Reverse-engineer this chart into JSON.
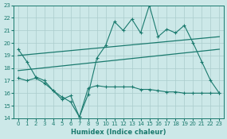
{
  "xlabel": "Humidex (Indice chaleur)",
  "bg_color": "#cce8e8",
  "line_color": "#1a7a6e",
  "grid_color": "#aacccc",
  "xlim": [
    -0.5,
    23.5
  ],
  "ylim": [
    14,
    23
  ],
  "xticks": [
    0,
    1,
    2,
    3,
    4,
    5,
    6,
    7,
    8,
    9,
    10,
    11,
    12,
    13,
    14,
    15,
    16,
    17,
    18,
    19,
    20,
    21,
    22,
    23
  ],
  "yticks": [
    14,
    15,
    16,
    17,
    18,
    19,
    20,
    21,
    22,
    23
  ],
  "line1_x": [
    0,
    1,
    2,
    3,
    4,
    5,
    6,
    7,
    8,
    9,
    10,
    11,
    12,
    13,
    14,
    15,
    16,
    17,
    18,
    19,
    20,
    21,
    22,
    23
  ],
  "line1_y": [
    19.5,
    18.5,
    17.3,
    17.0,
    16.2,
    15.5,
    15.8,
    14.1,
    15.9,
    18.8,
    19.8,
    21.7,
    21.0,
    21.9,
    20.8,
    23.0,
    20.5,
    21.1,
    20.8,
    21.4,
    20.0,
    18.5,
    17.0,
    16.0
  ],
  "line2_x": [
    0,
    1,
    2,
    3,
    4,
    5,
    6,
    7,
    8,
    9,
    10,
    11,
    12,
    13,
    14,
    15,
    16,
    17,
    18,
    19,
    20,
    21,
    22,
    23
  ],
  "line2_y": [
    17.2,
    17.0,
    17.2,
    16.8,
    16.2,
    15.7,
    15.3,
    14.1,
    16.4,
    16.6,
    16.5,
    16.5,
    16.5,
    16.5,
    16.3,
    16.3,
    16.2,
    16.1,
    16.1,
    16.0,
    16.0,
    16.0,
    16.0,
    16.0
  ],
  "line3_x": [
    0,
    23
  ],
  "line3_y": [
    19.0,
    20.5
  ],
  "line4_x": [
    0,
    23
  ],
  "line4_y": [
    17.8,
    19.5
  ]
}
